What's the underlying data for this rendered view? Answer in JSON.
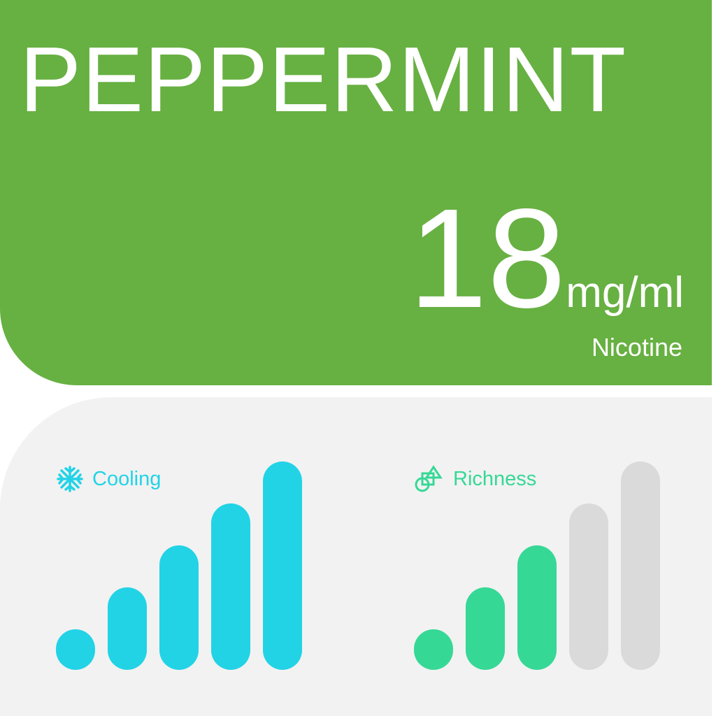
{
  "header": {
    "title": "PEPPERMINT",
    "strength_value": "18",
    "strength_unit": "mg/ml",
    "strength_label": "Nicotine",
    "color": "#67b042"
  },
  "ratings": [
    {
      "label": "Cooling",
      "icon": "snowflake-icon",
      "level": 5,
      "max": 5,
      "color": "#22d3e6"
    },
    {
      "label": "Richness",
      "icon": "shapes-icon",
      "level": 3,
      "max": 5,
      "color": "#36d896"
    }
  ],
  "inactive_color": "#dadada"
}
